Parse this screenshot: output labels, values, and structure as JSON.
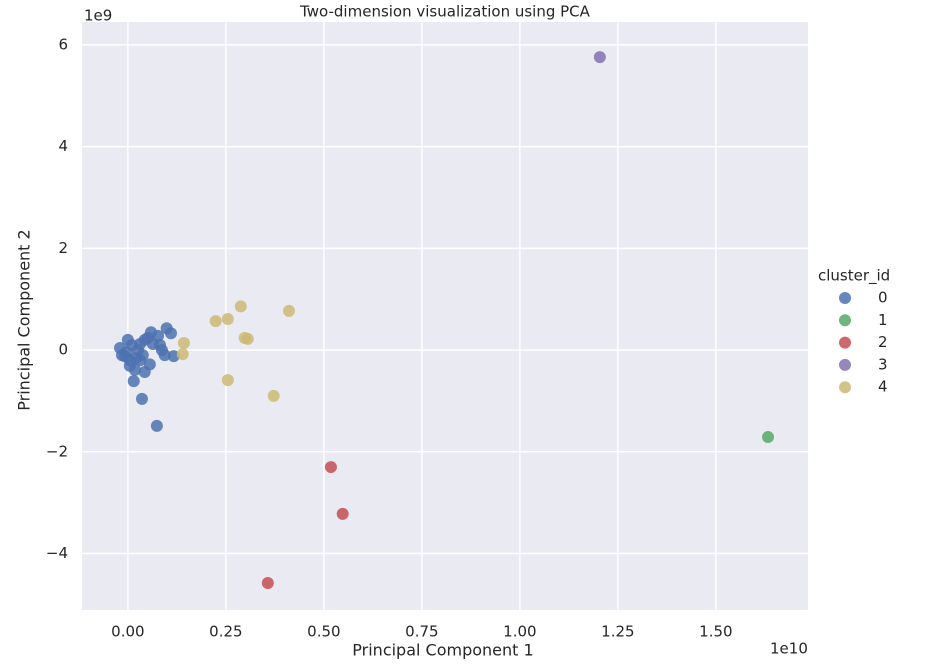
{
  "chart_data": {
    "type": "scatter",
    "title": "Two-dimension visualization using PCA",
    "x_label": "Principal Component 1",
    "y_label": "Principal Component 2",
    "x_offset_label": "1e10",
    "y_offset_label": "1e9",
    "legend_title": "cluster_id",
    "legend_position": "right",
    "grid": true,
    "xlim": [
      -0.117,
      1.735
    ],
    "ylim": [
      -5.11,
      6.45
    ],
    "xticks": [
      {
        "value": 0,
        "label": "0.00"
      },
      0.25,
      {
        "value": 0.5,
        "label": "0.50"
      },
      0.75,
      {
        "value": 1,
        "label": "1.00"
      },
      1.25,
      {
        "value": 1.5,
        "label": "1.50"
      }
    ],
    "yticks": [
      {
        "value": -4,
        "label": "−4"
      },
      {
        "value": -2,
        "label": "−2"
      },
      0,
      2,
      4,
      6
    ],
    "series": [
      {
        "name": "0",
        "color": "#4c72b0",
        "x": [
          0.074,
          0.036,
          0.015,
          0.099,
          0.11,
          0.117,
          0.059,
          0.051,
          0.031,
          -0.02,
          -0.008,
          0.005,
          0.018,
          0.043,
          0.056,
          0.082,
          0.087,
          0.026,
          0.01,
          -0.003,
          0.038,
          0.064,
          0.077,
          0,
          0.02,
          0.005,
          0.043,
          -0.015,
          0.031,
          0.094
        ],
        "y": [
          -1.49,
          -0.96,
          -0.61,
          0.43,
          0.33,
          -0.12,
          0.35,
          0.24,
          0.12,
          0.04,
          -0.12,
          -0.31,
          -0.39,
          -0.43,
          -0.28,
          0.1,
          0,
          0,
          0.1,
          -0.04,
          -0.1,
          0.12,
          0.28,
          0.2,
          -0.16,
          -0.2,
          0.2,
          -0.1,
          -0.2,
          -0.1
        ]
      },
      {
        "name": "1",
        "color": "#55a868",
        "x": [
          1.633
        ],
        "y": [
          -1.71
        ]
      },
      {
        "name": "2",
        "color": "#c44e52",
        "x": [
          0.518,
          0.548,
          0.357
        ],
        "y": [
          -2.3,
          -3.22,
          -4.58
        ]
      },
      {
        "name": "3",
        "color": "#8172b2",
        "x": [
          1.204
        ],
        "y": [
          5.76
        ]
      },
      {
        "name": "4",
        "color": "#ccb974",
        "x": [
          0.224,
          0.255,
          0.288,
          0.411,
          0.298,
          0.306,
          0.143,
          0.14,
          0.255,
          0.372
        ],
        "y": [
          0.57,
          0.61,
          0.86,
          0.77,
          0.24,
          0.22,
          0.14,
          -0.08,
          -0.59,
          -0.9
        ]
      }
    ]
  }
}
